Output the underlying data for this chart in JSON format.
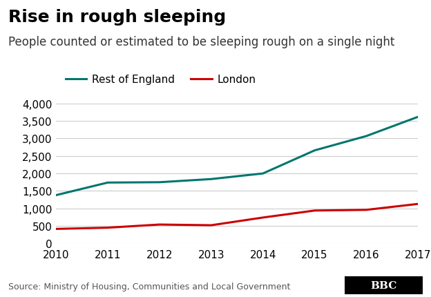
{
  "title": "Rise in rough sleeping",
  "subtitle": "People counted or estimated to be sleeping rough on a single night",
  "source": "Source: Ministry of Housing, Communities and Local Government",
  "years": [
    2010,
    2011,
    2012,
    2013,
    2014,
    2015,
    2016,
    2017
  ],
  "rest_of_england": [
    1380,
    1740,
    1750,
    1840,
    2000,
    2660,
    3070,
    3620
  ],
  "london": [
    415,
    450,
    540,
    520,
    740,
    940,
    960,
    1130
  ],
  "rest_color": "#00756e",
  "london_color": "#cc0000",
  "ylim": [
    0,
    4000
  ],
  "yticks": [
    0,
    500,
    1000,
    1500,
    2000,
    2500,
    3000,
    3500,
    4000
  ],
  "legend_rest": "Rest of England",
  "legend_london": "London",
  "background_color": "#ffffff",
  "grid_color": "#cccccc",
  "title_fontsize": 18,
  "subtitle_fontsize": 12,
  "tick_fontsize": 11,
  "line_width": 2.2
}
